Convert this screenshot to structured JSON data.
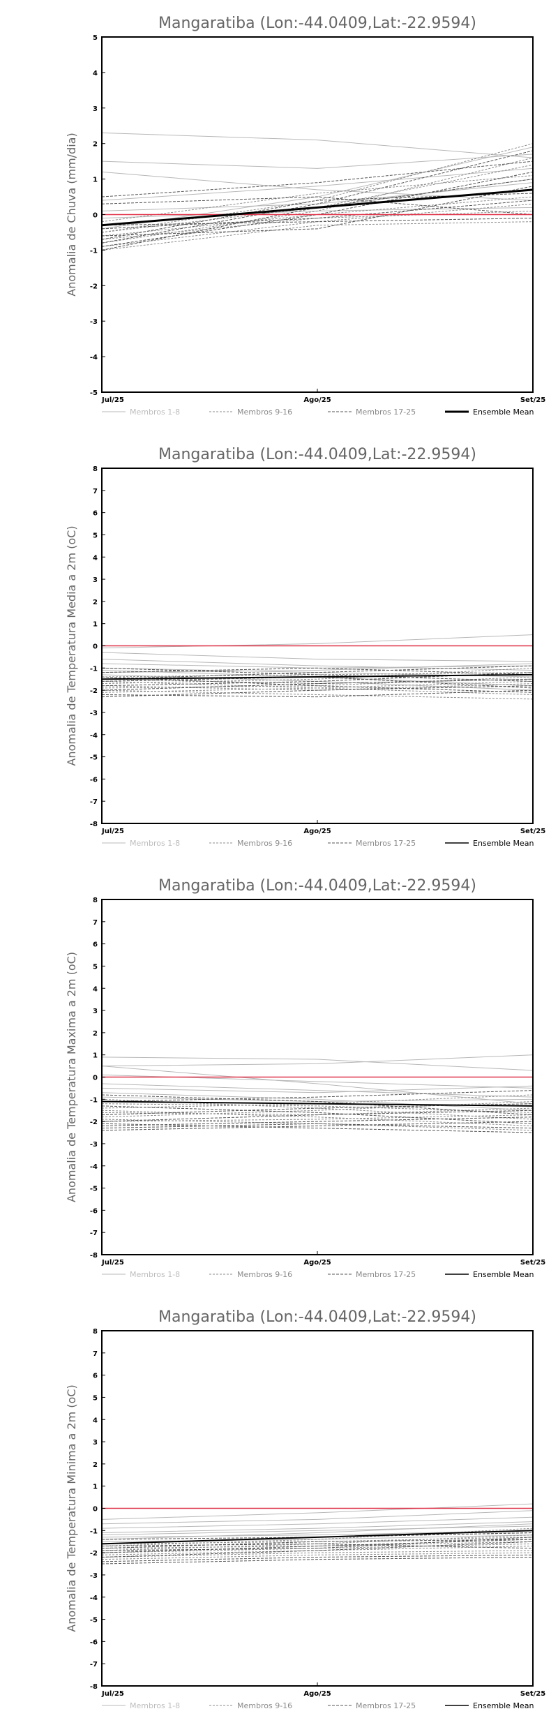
{
  "colors": {
    "zero_line": "#e0334a",
    "frame": "#000000",
    "members_1_8": "#b8b8b8",
    "members_9_16": "#8c8c8c",
    "members_17_25": "#555555",
    "ensemble_mean": "#000000"
  },
  "legend": {
    "members_1_8": "Membros 1-8",
    "members_9_16": "Membros 9-16",
    "members_17_25": "Membros 17-25",
    "ensemble_mean": "Ensemble Mean"
  },
  "chart_data": [
    {
      "type": "line",
      "title": "Mangaratiba (Lon:-44.0409,Lat:-22.9594)",
      "ylabel": "Anomalia de Chuva (mm/dia)",
      "xlabel": "",
      "categories": [
        "Jul/25",
        "Ago/25",
        "Set/25"
      ],
      "ylim": [
        -5,
        5
      ],
      "yticks": [
        -5,
        -4,
        -3,
        -2,
        -1,
        0,
        1,
        2,
        3,
        4,
        5
      ],
      "grid": false,
      "legend_position": "bottom",
      "zero_line": 0,
      "ensemble_mean": [
        -0.3,
        0.2,
        0.7
      ],
      "members": [
        [
          2.3,
          2.1,
          1.6
        ],
        [
          1.5,
          1.3,
          1.7
        ],
        [
          1.2,
          0.7,
          0.4
        ],
        [
          0.4,
          0.8,
          1.3
        ],
        [
          0.1,
          0.3,
          0.9
        ],
        [
          -0.1,
          0.1,
          0.2
        ],
        [
          -0.3,
          0.2,
          1.0
        ],
        [
          -0.4,
          0.5,
          1.9
        ],
        [
          -0.5,
          0.2,
          1.4
        ],
        [
          -0.6,
          0.0,
          0.5
        ],
        [
          -0.7,
          -0.1,
          0.1
        ],
        [
          -0.8,
          0.1,
          1.6
        ],
        [
          -0.9,
          -0.2,
          0.3
        ],
        [
          -1.0,
          -0.3,
          -0.2
        ],
        [
          -0.5,
          0.4,
          2.0
        ],
        [
          -0.2,
          0.6,
          1.1
        ],
        [
          0.3,
          0.5,
          0.0
        ],
        [
          -0.6,
          -0.4,
          0.8
        ],
        [
          -0.8,
          0.3,
          1.8
        ],
        [
          -0.4,
          -0.1,
          0.4
        ],
        [
          0.5,
          0.9,
          1.5
        ],
        [
          -0.9,
          0.0,
          1.2
        ],
        [
          -0.7,
          0.4,
          0.6
        ],
        [
          -0.3,
          -0.2,
          -0.1
        ],
        [
          -1.0,
          0.2,
          1.0
        ]
      ]
    },
    {
      "type": "line",
      "title": "Mangaratiba (Lon:-44.0409,Lat:-22.9594)",
      "ylabel": "Anomalia de Temperatura Media a 2m (oC)",
      "xlabel": "",
      "categories": [
        "Jul/25",
        "Ago/25",
        "Set/25"
      ],
      "ylim": [
        -8,
        8
      ],
      "yticks": [
        -8,
        -7,
        -6,
        -5,
        -4,
        -3,
        -2,
        -1,
        0,
        1,
        2,
        3,
        4,
        5,
        6,
        7,
        8
      ],
      "grid": false,
      "legend_position": "bottom",
      "zero_line": 0,
      "ensemble_mean": [
        -1.5,
        -1.4,
        -1.3
      ],
      "members": [
        [
          -0.1,
          0.1,
          0.5
        ],
        [
          -0.3,
          -0.6,
          -0.7
        ],
        [
          -0.6,
          -0.9,
          -1.1
        ],
        [
          -0.8,
          -1.0,
          -0.9
        ],
        [
          -1.0,
          -1.2,
          -1.4
        ],
        [
          -1.1,
          -1.4,
          -1.8
        ],
        [
          -1.2,
          -1.1,
          -0.8
        ],
        [
          -1.3,
          -1.6,
          -2.0
        ],
        [
          -1.4,
          -1.3,
          -1.2
        ],
        [
          -1.5,
          -1.7,
          -1.5
        ],
        [
          -1.6,
          -1.9,
          -2.2
        ],
        [
          -1.7,
          -1.5,
          -1.0
        ],
        [
          -1.8,
          -2.0,
          -1.7
        ],
        [
          -1.9,
          -1.8,
          -1.4
        ],
        [
          -2.0,
          -2.2,
          -2.4
        ],
        [
          -2.1,
          -1.9,
          -1.6
        ],
        [
          -2.2,
          -2.3,
          -2.0
        ],
        [
          -1.2,
          -1.0,
          -1.3
        ],
        [
          -1.6,
          -1.4,
          -1.9
        ],
        [
          -1.4,
          -1.8,
          -2.1
        ],
        [
          -2.3,
          -2.0,
          -1.8
        ],
        [
          -1.0,
          -1.3,
          -1.6
        ],
        [
          -1.8,
          -1.6,
          -1.2
        ],
        [
          -2.0,
          -1.7,
          -1.5
        ],
        [
          -1.5,
          -1.2,
          -0.9
        ]
      ]
    },
    {
      "type": "line",
      "title": "Mangaratiba (Lon:-44.0409,Lat:-22.9594)",
      "ylabel": "Anomalia de Temperatura Maxima a 2m (oC)",
      "xlabel": "",
      "categories": [
        "Jul/25",
        "Ago/25",
        "Set/25"
      ],
      "ylim": [
        -8,
        8
      ],
      "yticks": [
        -8,
        -7,
        -6,
        -5,
        -4,
        -3,
        -2,
        -1,
        0,
        1,
        2,
        3,
        4,
        5,
        6,
        7,
        8
      ],
      "grid": false,
      "legend_position": "bottom",
      "zero_line": 0,
      "ensemble_mean": [
        -1.1,
        -1.2,
        -1.3
      ],
      "members": [
        [
          0.9,
          0.8,
          0.3
        ],
        [
          0.5,
          0.6,
          1.0
        ],
        [
          0.5,
          -0.3,
          -1.2
        ],
        [
          0.1,
          -0.2,
          -0.5
        ],
        [
          -0.3,
          -0.6,
          -0.9
        ],
        [
          -0.5,
          -0.7,
          -0.4
        ],
        [
          -0.7,
          -1.0,
          -1.5
        ],
        [
          -0.9,
          -1.1,
          -1.0
        ],
        [
          -1.0,
          -1.4,
          -1.9
        ],
        [
          -1.2,
          -1.3,
          -1.6
        ],
        [
          -1.4,
          -1.2,
          -0.8
        ],
        [
          -1.5,
          -1.8,
          -2.2
        ],
        [
          -1.6,
          -1.7,
          -1.4
        ],
        [
          -1.8,
          -1.5,
          -1.1
        ],
        [
          -1.9,
          -2.1,
          -2.4
        ],
        [
          -2.0,
          -1.9,
          -1.7
        ],
        [
          -2.1,
          -2.3,
          -2.5
        ],
        [
          -2.2,
          -2.0,
          -1.8
        ],
        [
          -2.3,
          -2.1,
          -2.3
        ],
        [
          -2.4,
          -2.2,
          -2.0
        ],
        [
          -1.3,
          -1.6,
          -2.1
        ],
        [
          -0.8,
          -1.1,
          -1.7
        ],
        [
          -1.7,
          -1.4,
          -1.2
        ],
        [
          -1.1,
          -0.9,
          -0.6
        ],
        [
          -2.0,
          -1.7,
          -1.5
        ]
      ]
    },
    {
      "type": "line",
      "title": "Mangaratiba (Lon:-44.0409,Lat:-22.9594)",
      "ylabel": "Anomalia de Temperatura Minima a 2m (oC)",
      "xlabel": "",
      "categories": [
        "Jul/25",
        "Ago/25",
        "Set/25"
      ],
      "ylim": [
        -8,
        8
      ],
      "yticks": [
        -8,
        -7,
        -6,
        -5,
        -4,
        -3,
        -2,
        -1,
        0,
        1,
        2,
        3,
        4,
        5,
        6,
        7,
        8
      ],
      "grid": false,
      "legend_position": "bottom",
      "zero_line": 0,
      "ensemble_mean": [
        -1.6,
        -1.3,
        -1.0
      ],
      "members": [
        [
          -0.5,
          -0.2,
          0.2
        ],
        [
          -0.7,
          -0.5,
          -0.1
        ],
        [
          -0.9,
          -0.7,
          -0.4
        ],
        [
          -1.1,
          -0.9,
          -0.6
        ],
        [
          -1.2,
          -1.0,
          -0.8
        ],
        [
          -1.3,
          -1.2,
          -1.0
        ],
        [
          -1.4,
          -1.1,
          -0.7
        ],
        [
          -1.5,
          -1.4,
          -1.2
        ],
        [
          -1.6,
          -1.5,
          -1.3
        ],
        [
          -1.7,
          -1.4,
          -0.9
        ],
        [
          -1.8,
          -1.7,
          -1.5
        ],
        [
          -1.9,
          -1.6,
          -1.2
        ],
        [
          -2.0,
          -1.8,
          -1.6
        ],
        [
          -2.1,
          -1.9,
          -1.7
        ],
        [
          -2.2,
          -2.0,
          -1.9
        ],
        [
          -2.3,
          -2.1,
          -2.0
        ],
        [
          -2.4,
          -2.2,
          -2.1
        ],
        [
          -1.6,
          -1.3,
          -1.1
        ],
        [
          -2.0,
          -1.7,
          -1.4
        ],
        [
          -1.8,
          -1.5,
          -1.4
        ],
        [
          -2.2,
          -1.9,
          -1.5
        ],
        [
          -1.4,
          -1.3,
          -1.1
        ],
        [
          -2.5,
          -2.3,
          -2.2
        ],
        [
          -1.7,
          -1.6,
          -1.8
        ],
        [
          -1.9,
          -1.8,
          -1.3
        ]
      ]
    }
  ]
}
